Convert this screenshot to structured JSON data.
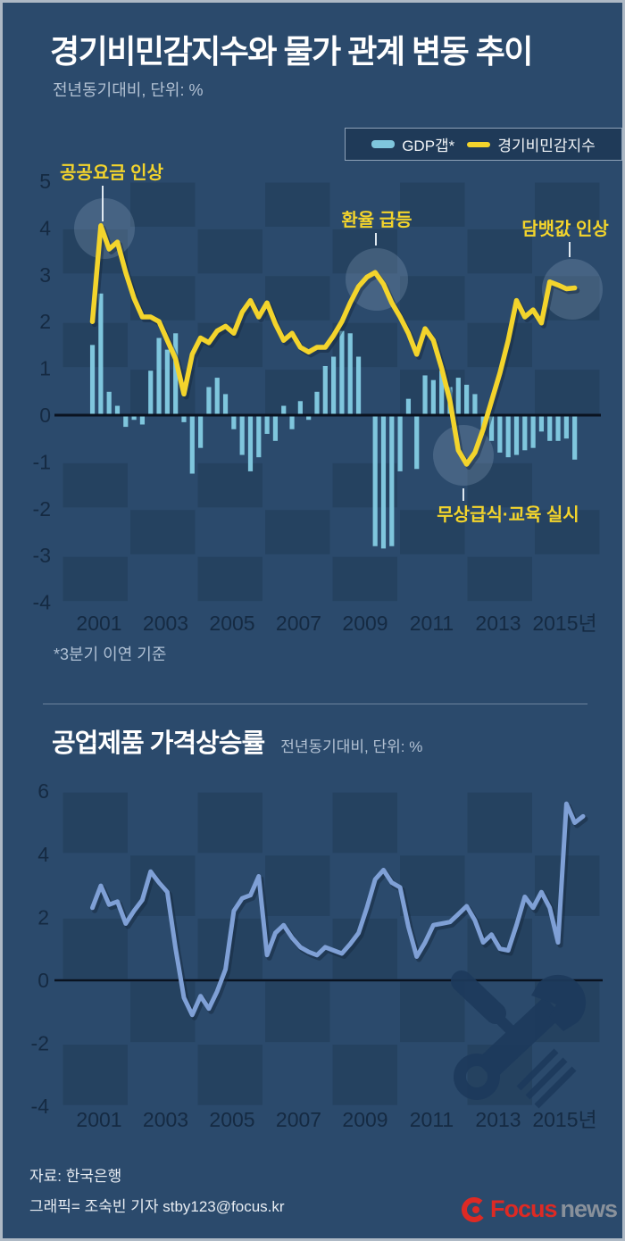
{
  "header": {
    "title": "경기비민감지수와 물가 관계 변동 추이",
    "subtitle": "전년동기대비, 단위: %"
  },
  "legend": {
    "items": [
      {
        "label": "GDP갭*",
        "swatch": "bar",
        "color": "#7fc6dd"
      },
      {
        "label": "경기비민감지수",
        "swatch": "line",
        "color": "#f3d42c"
      }
    ]
  },
  "note": "*3분기 이연 기준",
  "chart2_header": {
    "title": "공업제품 가격상승률",
    "subtitle": "전년동기대비, 단위: %"
  },
  "footer": {
    "source": "자료: 한국은행",
    "credit": "그래픽= 조숙빈 기자 stby123@focus.kr",
    "logo": {
      "focus": "Focus",
      "news": "news"
    }
  },
  "colors": {
    "background": "#2b4a6c",
    "checker_dark": "#254260",
    "bar": "#7fc6dd",
    "line1": "#f3d42c",
    "line2": "#7fa0d6",
    "axis_label": "#152a42",
    "zero_line": "#0a1320",
    "annotation": "#f3d42c",
    "highlight_circle": "#a9c0d6",
    "watermark": "#1d3a5c",
    "logo_red": "#dd2a24",
    "logo_gray": "#89919b"
  },
  "chart_data": [
    {
      "type": "bar+line",
      "title": "경기비민감지수와 물가 관계 변동 추이",
      "x_start_year": 2000.8,
      "x_step_years": 0.25,
      "x_tick_labels": [
        "2001",
        "2003",
        "2005",
        "2007",
        "2009",
        "2011",
        "2013",
        "2015년"
      ],
      "x_tick_years": [
        2001,
        2003,
        2005,
        2007,
        2009,
        2011,
        2013,
        2015
      ],
      "ylim": [
        -4,
        5
      ],
      "yticks": [
        5,
        4,
        3,
        2,
        1,
        0,
        -1,
        -2,
        -3,
        -4
      ],
      "legend_position": "top-right",
      "grid": "checkerboard",
      "series": [
        {
          "name": "GDP갭*",
          "type": "bar",
          "values": [
            1.5,
            2.6,
            0.5,
            0.2,
            -0.25,
            -0.1,
            -0.2,
            0.95,
            1.65,
            1.4,
            1.75,
            -0.15,
            -1.25,
            -0.7,
            0.6,
            0.8,
            0.45,
            -0.3,
            -0.85,
            -1.2,
            -0.9,
            -0.4,
            -0.55,
            0.2,
            -0.3,
            0.3,
            -0.1,
            0.5,
            1.05,
            1.25,
            1.8,
            1.75,
            1.25,
            null,
            -2.8,
            -2.85,
            -2.8,
            -1.2,
            0.35,
            -1.15,
            0.85,
            0.75,
            0.95,
            0.6,
            0.8,
            0.65,
            0.45,
            -0.3,
            -0.55,
            -0.8,
            -0.9,
            -0.85,
            -0.75,
            -0.7,
            -0.35,
            -0.55,
            -0.55,
            -0.5,
            -0.95
          ]
        },
        {
          "name": "경기비민감지수",
          "type": "line",
          "values": [
            2.0,
            4.05,
            3.55,
            3.7,
            3.05,
            2.5,
            2.1,
            2.1,
            2.0,
            1.6,
            1.2,
            0.45,
            1.3,
            1.65,
            1.55,
            1.8,
            1.9,
            1.75,
            2.2,
            2.45,
            2.1,
            2.4,
            1.95,
            1.6,
            1.75,
            1.45,
            1.35,
            1.45,
            1.45,
            1.7,
            2.0,
            2.4,
            2.75,
            2.95,
            3.05,
            2.8,
            2.4,
            2.1,
            1.75,
            1.3,
            1.85,
            1.6,
            1.0,
            0.3,
            -0.75,
            -1.05,
            -0.8,
            -0.3,
            0.3,
            0.9,
            1.6,
            2.45,
            2.1,
            2.25,
            1.97,
            2.85,
            2.78,
            2.7,
            2.72
          ]
        }
      ],
      "annotations": [
        {
          "text": "공공요금 인상",
          "tx": 122,
          "ty": 197,
          "cx": 114,
          "cy": 253,
          "r": 34,
          "lx": 112,
          "ly1": 205,
          "ly2": 245
        },
        {
          "text": "환율 급등",
          "tx": 419,
          "ty": 250,
          "cx": 419,
          "cy": 310,
          "r": 35,
          "lx": 418,
          "ly1": 258,
          "ly2": 272
        },
        {
          "text": "담뱃값 인상",
          "tx": 630,
          "ty": 260,
          "cx": 638,
          "cy": 321,
          "r": 34,
          "lx": 635,
          "ly1": 268,
          "ly2": 285
        },
        {
          "text": "무상급식·교육 실시",
          "tx": 566,
          "ty": 580,
          "cx": 516,
          "cy": 507,
          "r": 34,
          "lx": 516,
          "ly1": 544,
          "ly2": 558
        }
      ]
    },
    {
      "type": "line",
      "title": "공업제품 가격상승률",
      "x_start_year": 2000.8,
      "x_step_years": 0.25,
      "x_tick_labels": [
        "2001",
        "2003",
        "2005",
        "2007",
        "2009",
        "2011",
        "2013",
        "2015년"
      ],
      "x_tick_years": [
        2001,
        2003,
        2005,
        2007,
        2009,
        2011,
        2013,
        2015
      ],
      "ylim": [
        -4,
        6
      ],
      "yticks": [
        6,
        4,
        2,
        0,
        -2,
        -4
      ],
      "grid": "checkerboard",
      "series": [
        {
          "name": "공업제품 가격상승률",
          "type": "line",
          "values": [
            2.3,
            3.0,
            2.4,
            2.5,
            1.8,
            2.2,
            2.55,
            3.45,
            3.1,
            2.8,
            1.0,
            -0.55,
            -1.1,
            -0.5,
            -0.9,
            -0.35,
            0.35,
            2.2,
            2.6,
            2.7,
            3.3,
            0.8,
            1.5,
            1.75,
            1.35,
            1.05,
            0.9,
            0.8,
            1.05,
            0.95,
            0.85,
            1.15,
            1.5,
            2.3,
            3.2,
            3.5,
            3.1,
            2.95,
            1.7,
            0.75,
            1.2,
            1.75,
            1.8,
            1.85,
            2.1,
            2.35,
            1.9,
            1.2,
            1.45,
            1.0,
            0.95,
            1.75,
            2.65,
            2.3,
            2.8,
            2.3,
            1.2,
            5.6,
            5.0,
            5.2
          ]
        }
      ]
    }
  ]
}
